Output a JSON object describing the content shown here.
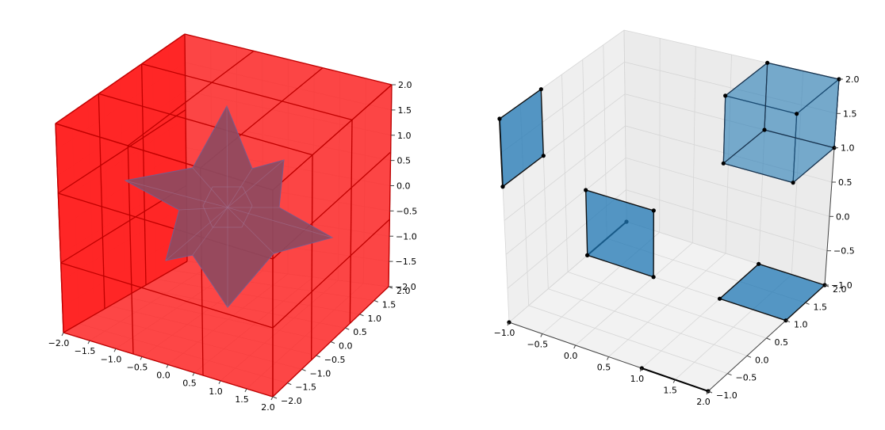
{
  "chart_data": [
    {
      "type": "3d-surface",
      "title": "",
      "xlim": [
        -2.0,
        2.0
      ],
      "ylim": [
        -2.0,
        2.0
      ],
      "zlim": [
        -2.0,
        2.0
      ],
      "x_ticks": [
        "−2.0",
        "−1.5",
        "−1.0",
        "−0.5",
        "0.0",
        "0.5",
        "1.0",
        "1.5",
        "2.0"
      ],
      "y_ticks": [
        "−2.0",
        "−1.5",
        "−1.0",
        "−0.5",
        "0.0",
        "0.5",
        "1.0",
        "1.5",
        "2.0"
      ],
      "z_ticks": [
        "−2.0",
        "−1.5",
        "−1.0",
        "−0.5",
        "0.0",
        "0.5",
        "1.0",
        "1.5",
        "2.0"
      ],
      "grid": true,
      "objects": [
        {
          "kind": "cube",
          "range": [
            -2,
            2
          ],
          "subdivisions": 3,
          "face_color": "#ff2020",
          "edge_color": "#c00000",
          "alpha": 0.85
        },
        {
          "kind": "stellated-polyhedron (star)",
          "face_color": "#8e4a60",
          "edge_color": "#7a5a8a"
        }
      ]
    },
    {
      "type": "3d-scatter",
      "title": "",
      "xlim": [
        -1.0,
        2.0
      ],
      "ylim": [
        -1.0,
        2.0
      ],
      "zlim": [
        -1.0,
        2.0
      ],
      "x_ticks": [
        "−1.0",
        "−0.5",
        "0.0",
        "0.5",
        "1.0",
        "1.5",
        "2.0"
      ],
      "y_ticks": [
        "−1.0",
        "−0.5",
        "0.0",
        "0.5",
        "1.0",
        "1.5",
        "2.0"
      ],
      "z_ticks": [
        "−1.0",
        "−0.5",
        "0.0",
        "0.5",
        "1.0",
        "1.5",
        "2.0"
      ],
      "grid": true,
      "face_color": "#1f77b4",
      "objects": [
        {
          "kind": "point",
          "pos": [
            -1,
            -1,
            -1
          ]
        },
        {
          "kind": "segment",
          "from": [
            1,
            -1,
            -1
          ],
          "to": [
            2,
            -1,
            -1
          ]
        },
        {
          "kind": "segment",
          "from": [
            -1,
            1,
            -1
          ],
          "to": [
            -1,
            2,
            -1
          ]
        },
        {
          "kind": "segment",
          "from": [
            -1,
            -1,
            1
          ],
          "to": [
            -1,
            -1,
            2
          ]
        },
        {
          "kind": "square",
          "plane": "xy",
          "x": [
            1,
            2
          ],
          "y": [
            1,
            2
          ],
          "z": -1
        },
        {
          "kind": "square",
          "plane": "xz",
          "x": [
            -1,
            0
          ],
          "z": [
            -1,
            0
          ],
          "y": 1
        },
        {
          "kind": "square",
          "plane": "yz",
          "y": [
            -1,
            0
          ],
          "z": [
            1,
            2
          ],
          "x": -1
        },
        {
          "kind": "cube",
          "x": [
            1,
            2
          ],
          "y": [
            1,
            2
          ],
          "z": [
            1,
            2
          ]
        }
      ]
    }
  ]
}
